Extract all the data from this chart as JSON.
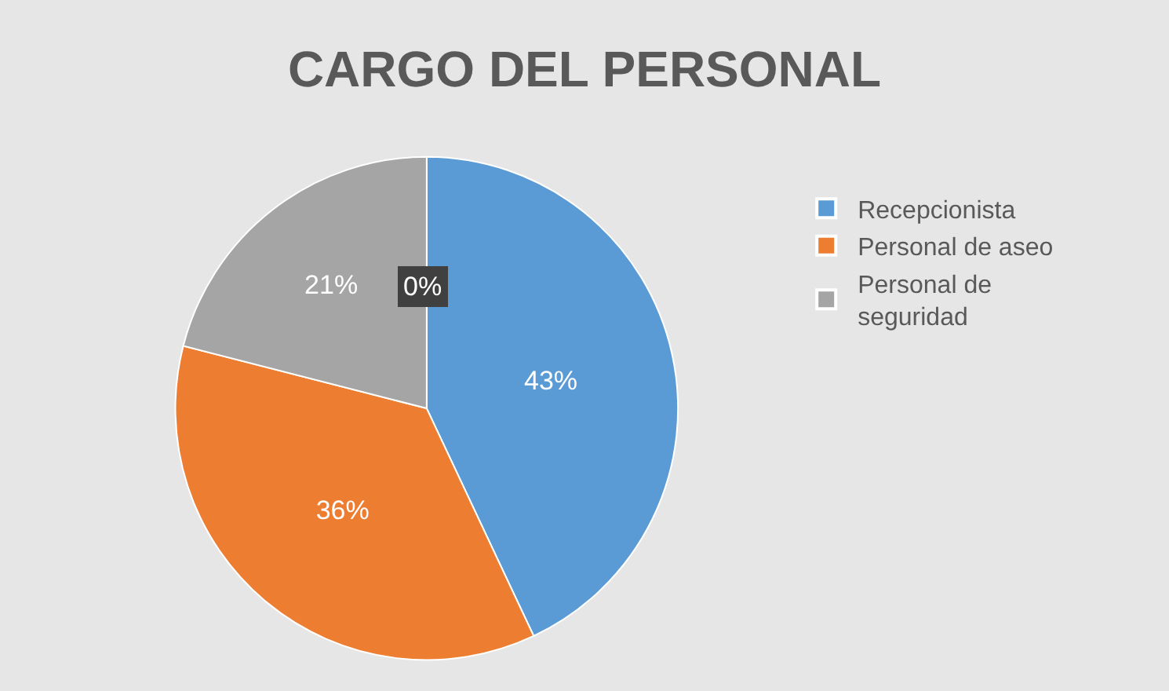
{
  "chart_data": {
    "type": "pie",
    "title": "CARGO DEL PERSONAL",
    "categories": [
      "Recepcionista",
      "Personal de aseo",
      "Personal de\nseguridad"
    ],
    "values": [
      43,
      36,
      21
    ],
    "colors": [
      "#5b9bd5",
      "#ed7d31",
      "#a5a5a5"
    ],
    "value_labels": [
      "43%",
      "36%",
      "21%"
    ],
    "annotations": [
      "0%"
    ],
    "legend": "right"
  }
}
